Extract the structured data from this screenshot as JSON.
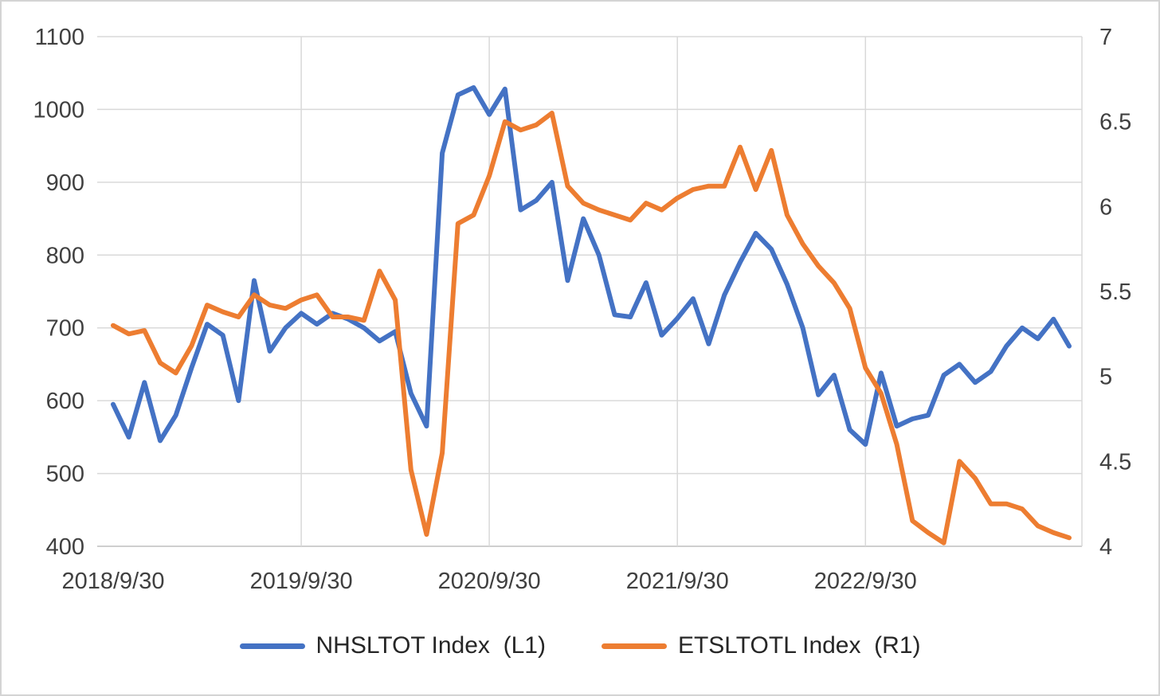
{
  "chart_data": {
    "type": "line",
    "title": "",
    "x_tick_labels": [
      "2018/9/30",
      "2019/9/30",
      "2020/9/30",
      "2021/9/30",
      "2022/9/30"
    ],
    "x_tick_indices": [
      0,
      12,
      24,
      36,
      48
    ],
    "left_axis": {
      "min": 400,
      "max": 1100,
      "ticks": [
        1100,
        1000,
        900,
        800,
        700,
        600,
        500,
        400
      ]
    },
    "right_axis": {
      "min": 4,
      "max": 7,
      "ticks": [
        7,
        6.5,
        6,
        5.5,
        5,
        4.5,
        4
      ]
    },
    "grid": true,
    "legend_position": "bottom",
    "series": [
      {
        "name": "NHSLTOT Index  (L1)",
        "axis": "left",
        "color": "#4472C4",
        "values": [
          595,
          550,
          625,
          545,
          580,
          645,
          705,
          690,
          600,
          765,
          668,
          700,
          720,
          705,
          720,
          712,
          700,
          682,
          695,
          610,
          565,
          940,
          1020,
          1030,
          993,
          1028,
          862,
          875,
          900,
          765,
          850,
          800,
          718,
          715,
          762,
          690,
          713,
          740,
          678,
          745,
          790,
          830,
          808,
          760,
          700,
          608,
          635,
          560,
          540,
          638,
          565,
          575,
          580,
          635,
          650,
          625,
          640,
          675,
          700,
          685,
          712,
          675
        ]
      },
      {
        "name": "ETSLTOTL Index  (R1)",
        "axis": "right",
        "color": "#ED7D31",
        "values": [
          5.3,
          5.25,
          5.27,
          5.08,
          5.02,
          5.18,
          5.42,
          5.38,
          5.35,
          5.48,
          5.42,
          5.4,
          5.45,
          5.48,
          5.35,
          5.35,
          5.33,
          5.62,
          5.45,
          4.45,
          4.07,
          4.55,
          5.9,
          5.95,
          6.18,
          6.5,
          6.45,
          6.48,
          6.55,
          6.12,
          6.02,
          5.98,
          5.95,
          5.92,
          6.02,
          5.98,
          6.05,
          6.1,
          6.12,
          6.12,
          6.35,
          6.1,
          6.33,
          5.95,
          5.78,
          5.65,
          5.55,
          5.4,
          5.05,
          4.9,
          4.6,
          4.15,
          4.08,
          4.02,
          4.5,
          4.4,
          4.25,
          4.25,
          4.22,
          4.12,
          4.08,
          4.05
        ]
      }
    ],
    "colors": {
      "gridline": "#D9D9D9",
      "axis_line": "#BFBFBF",
      "text": "#404040"
    }
  }
}
